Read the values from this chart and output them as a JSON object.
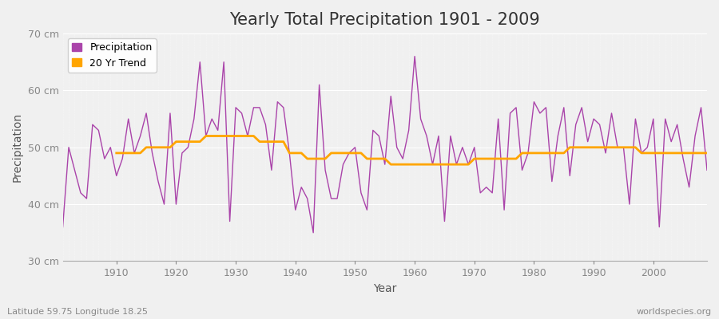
{
  "title": "Yearly Total Precipitation 1901 - 2009",
  "xlabel": "Year",
  "ylabel": "Precipitation",
  "footnote_left": "Latitude 59.75 Longitude 18.25",
  "footnote_right": "worldspecies.org",
  "years": [
    1901,
    1902,
    1903,
    1904,
    1905,
    1906,
    1907,
    1908,
    1909,
    1910,
    1911,
    1912,
    1913,
    1914,
    1915,
    1916,
    1917,
    1918,
    1919,
    1920,
    1921,
    1922,
    1923,
    1924,
    1925,
    1926,
    1927,
    1928,
    1929,
    1930,
    1931,
    1932,
    1933,
    1934,
    1935,
    1936,
    1937,
    1938,
    1939,
    1940,
    1941,
    1942,
    1943,
    1944,
    1945,
    1946,
    1947,
    1948,
    1949,
    1950,
    1951,
    1952,
    1953,
    1954,
    1955,
    1956,
    1957,
    1958,
    1959,
    1960,
    1961,
    1962,
    1963,
    1964,
    1965,
    1966,
    1967,
    1968,
    1969,
    1970,
    1971,
    1972,
    1973,
    1974,
    1975,
    1976,
    1977,
    1978,
    1979,
    1980,
    1981,
    1982,
    1983,
    1984,
    1985,
    1986,
    1987,
    1988,
    1989,
    1990,
    1991,
    1992,
    1993,
    1994,
    1995,
    1996,
    1997,
    1998,
    1999,
    2000,
    2001,
    2002,
    2003,
    2004,
    2005,
    2006,
    2007,
    2008,
    2009
  ],
  "precip": [
    36,
    50,
    46,
    42,
    41,
    54,
    53,
    48,
    50,
    45,
    48,
    55,
    49,
    52,
    56,
    49,
    44,
    40,
    56,
    40,
    49,
    50,
    55,
    65,
    52,
    55,
    53,
    65,
    37,
    57,
    56,
    52,
    57,
    57,
    54,
    46,
    58,
    57,
    49,
    39,
    43,
    41,
    35,
    61,
    46,
    41,
    41,
    47,
    49,
    50,
    42,
    39,
    53,
    52,
    47,
    59,
    50,
    48,
    53,
    66,
    55,
    52,
    47,
    52,
    37,
    52,
    47,
    50,
    47,
    50,
    42,
    43,
    42,
    55,
    39,
    56,
    57,
    46,
    49,
    58,
    56,
    57,
    44,
    52,
    57,
    45,
    54,
    57,
    51,
    55,
    54,
    49,
    56,
    50,
    50,
    40,
    55,
    49,
    50,
    55,
    36,
    55,
    51,
    54,
    48,
    43,
    52,
    57,
    46
  ],
  "trend_years": [
    1910,
    1911,
    1912,
    1913,
    1914,
    1915,
    1916,
    1917,
    1918,
    1919,
    1920,
    1921,
    1922,
    1923,
    1924,
    1925,
    1926,
    1927,
    1928,
    1929,
    1930,
    1931,
    1932,
    1933,
    1934,
    1935,
    1936,
    1937,
    1938,
    1939,
    1940,
    1941,
    1942,
    1943,
    1944,
    1945,
    1946,
    1947,
    1948,
    1949,
    1950,
    1951,
    1952,
    1953,
    1954,
    1955,
    1956,
    1957,
    1958,
    1959,
    1960,
    1961,
    1962,
    1963,
    1964,
    1965,
    1966,
    1967,
    1968,
    1969,
    1970,
    1971,
    1972,
    1973,
    1974,
    1975,
    1976,
    1977,
    1978,
    1979,
    1980,
    1981,
    1982,
    1983,
    1984,
    1985,
    1986,
    1987,
    1988,
    1989,
    1990,
    1991,
    1992,
    1993,
    1994,
    1995,
    1996,
    1997,
    1998,
    1999,
    2000,
    2001,
    2002,
    2003,
    2004,
    2005,
    2006,
    2007,
    2008,
    2009
  ],
  "trend": [
    49,
    49,
    49,
    49,
    49,
    50,
    50,
    50,
    50,
    50,
    51,
    51,
    51,
    51,
    51,
    52,
    52,
    52,
    52,
    52,
    52,
    52,
    52,
    52,
    51,
    51,
    51,
    51,
    51,
    49,
    49,
    49,
    48,
    48,
    48,
    48,
    49,
    49,
    49,
    49,
    49,
    49,
    48,
    48,
    48,
    48,
    47,
    47,
    47,
    47,
    47,
    47,
    47,
    47,
    47,
    47,
    47,
    47,
    47,
    47,
    48,
    48,
    48,
    48,
    48,
    48,
    48,
    48,
    49,
    49,
    49,
    49,
    49,
    49,
    49,
    49,
    50,
    50,
    50,
    50,
    50,
    50,
    50,
    50,
    50,
    50,
    50,
    50,
    49,
    49,
    49,
    49,
    49,
    49,
    49,
    49,
    49,
    49,
    49,
    49
  ],
  "precip_color": "#AA44AA",
  "trend_color": "#FFA500",
  "bg_color": "#F0F0F0",
  "plot_bg_color": "#F0F0F0",
  "grid_color": "#FFFFFF",
  "ylim": [
    30,
    70
  ],
  "yticks": [
    30,
    40,
    50,
    60,
    70
  ],
  "ytick_labels": [
    "30 cm",
    "40 cm",
    "50 cm",
    "60 cm",
    "70 cm"
  ],
  "title_fontsize": 15,
  "axis_fontsize": 10,
  "tick_fontsize": 9,
  "legend_fontsize": 9
}
